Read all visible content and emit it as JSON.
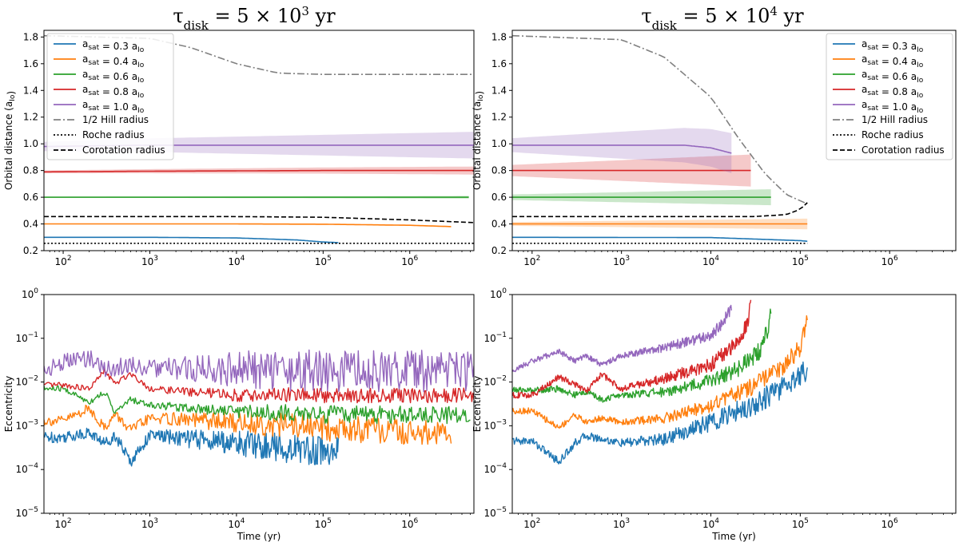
{
  "panels": {
    "left_title": "τ_disk = 5 × 10^3 yr",
    "right_title": "τ_disk = 5 × 10^4 yr"
  },
  "colors": {
    "0.3": "#1f77b4",
    "0.4": "#ff7f0e",
    "0.6": "#2ca02c",
    "0.8": "#d62728",
    "1.0": "#9467bd",
    "hill": "#808080",
    "roche": "#000000",
    "corotation": "#000000"
  },
  "legend": {
    "series": [
      {
        "label": "a_sat = 0.3 a_Io",
        "key": "0.3",
        "style": "solid"
      },
      {
        "label": "a_sat = 0.4 a_Io",
        "key": "0.4",
        "style": "solid"
      },
      {
        "label": "a_sat = 0.6 a_Io",
        "key": "0.6",
        "style": "solid"
      },
      {
        "label": "a_sat = 0.8 a_Io",
        "key": "0.8",
        "style": "solid"
      },
      {
        "label": "a_sat = 1.0 a_Io",
        "key": "1.0",
        "style": "solid"
      },
      {
        "label": "1/2 Hill radius",
        "key": "hill",
        "style": "dashdot"
      },
      {
        "label": "Roche radius",
        "key": "roche",
        "style": "dotted"
      },
      {
        "label": "Corotation radius",
        "key": "corotation",
        "style": "dashed"
      }
    ]
  },
  "chart_data": [
    {
      "type": "line",
      "panel": "top-left",
      "title": "τ_disk = 5 × 10^3 yr",
      "xlabel": "",
      "ylabel": "Orbital distance (a_Io)",
      "xscale": "log",
      "xlim": [
        60,
        5500000
      ],
      "ylim": [
        0.2,
        1.85
      ],
      "xticks": [
        "10^2",
        "10^3",
        "10^4",
        "10^5",
        "10^6"
      ],
      "yticks": [
        "0.2",
        "0.4",
        "0.6",
        "0.8",
        "1.0",
        "1.2",
        "1.4",
        "1.6",
        "1.8"
      ],
      "legend_position": "top-left",
      "series": [
        {
          "name": "a_sat = 0.3 a_Io",
          "key": "0.3",
          "x": [
            60,
            1000,
            10000,
            50000,
            100000,
            150000
          ],
          "y": [
            0.3,
            0.3,
            0.295,
            0.28,
            0.265,
            0.26
          ],
          "band": 0.003
        },
        {
          "name": "a_sat = 0.4 a_Io",
          "key": "0.4",
          "x": [
            60,
            10000,
            100000,
            1000000,
            3000000
          ],
          "y": [
            0.4,
            0.4,
            0.398,
            0.39,
            0.38
          ],
          "band": 0.004
        },
        {
          "name": "a_sat = 0.6 a_Io",
          "key": "0.6",
          "x": [
            60,
            1000,
            100000,
            4800000
          ],
          "y": [
            0.6,
            0.6,
            0.6,
            0.6
          ],
          "band": 0.01
        },
        {
          "name": "a_sat = 0.8 a_Io",
          "key": "0.8",
          "x": [
            60,
            1000,
            100000,
            5500000
          ],
          "y": [
            0.79,
            0.795,
            0.8,
            0.8
          ],
          "band": 0.03
        },
        {
          "name": "a_sat = 1.0 a_Io",
          "key": "1.0",
          "x": [
            60,
            1000,
            100000,
            5500000
          ],
          "y": [
            0.98,
            0.99,
            0.99,
            0.99
          ],
          "band": 0.1
        },
        {
          "name": "1/2 Hill radius",
          "key": "hill",
          "x": [
            60,
            1000,
            3000,
            10000,
            30000,
            100000,
            5500000
          ],
          "y": [
            1.81,
            1.79,
            1.72,
            1.6,
            1.53,
            1.52,
            1.52
          ]
        },
        {
          "name": "Roche radius",
          "key": "roche",
          "x": [
            60,
            5500000
          ],
          "y": [
            0.255,
            0.255
          ]
        },
        {
          "name": "Corotation radius",
          "key": "corotation",
          "x": [
            60,
            10000,
            100000,
            1000000,
            5500000
          ],
          "y": [
            0.455,
            0.455,
            0.45,
            0.43,
            0.41
          ]
        }
      ]
    },
    {
      "type": "line",
      "panel": "top-right",
      "title": "τ_disk = 5 × 10^4 yr",
      "xlabel": "",
      "ylabel": "Orbital distance (a_Io)",
      "xscale": "log",
      "xlim": [
        60,
        5500000
      ],
      "ylim": [
        0.2,
        1.85
      ],
      "xticks": [
        "10^2",
        "10^3",
        "10^4",
        "10^5",
        "10^6"
      ],
      "yticks": [
        "0.2",
        "0.4",
        "0.6",
        "0.8",
        "1.0",
        "1.2",
        "1.4",
        "1.6",
        "1.8"
      ],
      "legend_position": "top-right",
      "series": [
        {
          "name": "a_sat = 0.3 a_Io",
          "key": "0.3",
          "x": [
            60,
            10000,
            100000,
            120000
          ],
          "y": [
            0.3,
            0.298,
            0.275,
            0.27
          ],
          "band": 0.004
        },
        {
          "name": "a_sat = 0.4 a_Io",
          "key": "0.4",
          "x": [
            60,
            10000,
            100000,
            120000
          ],
          "y": [
            0.4,
            0.4,
            0.4,
            0.4
          ],
          "band": 0.04
        },
        {
          "name": "a_sat = 0.6 a_Io",
          "key": "0.6",
          "x": [
            60,
            10000,
            30000,
            47000
          ],
          "y": [
            0.6,
            0.6,
            0.6,
            0.6
          ],
          "band": 0.06
        },
        {
          "name": "a_sat = 0.8 a_Io",
          "key": "0.8",
          "x": [
            60,
            10000,
            20000,
            28000
          ],
          "y": [
            0.8,
            0.8,
            0.8,
            0.8
          ],
          "band": 0.12
        },
        {
          "name": "a_sat = 1.0 a_Io",
          "key": "1.0",
          "x": [
            60,
            5000,
            10000,
            17000
          ],
          "y": [
            0.99,
            0.99,
            0.97,
            0.93
          ],
          "band": 0.15
        },
        {
          "name": "1/2 Hill radius",
          "key": "hill",
          "x": [
            60,
            1000,
            3000,
            10000,
            20000,
            40000,
            70000,
            120000
          ],
          "y": [
            1.81,
            1.78,
            1.65,
            1.35,
            1.05,
            0.78,
            0.62,
            0.55
          ]
        },
        {
          "name": "Roche radius",
          "key": "roche",
          "x": [
            60,
            120000
          ],
          "y": [
            0.255,
            0.255
          ]
        },
        {
          "name": "Corotation radius",
          "key": "corotation",
          "x": [
            60,
            30000,
            70000,
            100000,
            120000
          ],
          "y": [
            0.455,
            0.455,
            0.47,
            0.51,
            0.56
          ]
        }
      ]
    },
    {
      "type": "line",
      "panel": "bottom-left",
      "title": "",
      "xlabel": "Time (yr)",
      "ylabel": "Eccentricity",
      "xscale": "log",
      "yscale": "log",
      "xlim": [
        60,
        5500000
      ],
      "ylim": [
        1e-05,
        1
      ],
      "xticks": [
        "10^2",
        "10^3",
        "10^4",
        "10^5",
        "10^6"
      ],
      "yticks": [
        "10^-5",
        "10^-4",
        "10^-3",
        "10^-2",
        "10^-1",
        "10^0"
      ],
      "series": [
        {
          "name": "a_sat = 0.3 a_Io",
          "key": "0.3",
          "x": [
            60,
            100,
            200,
            300,
            400,
            600,
            1000,
            3000,
            10000,
            50000,
            150000
          ],
          "y": [
            0.00055,
            0.00055,
            0.0007,
            0.0004,
            0.0006,
            0.00015,
            0.0006,
            0.0005,
            0.0004,
            0.0003,
            0.00025
          ],
          "spread": 2.2
        },
        {
          "name": "a_sat = 0.4 a_Io",
          "key": "0.4",
          "x": [
            60,
            100,
            200,
            300,
            400,
            600,
            1000,
            10000,
            100000,
            1000000,
            3000000
          ],
          "y": [
            0.0013,
            0.0013,
            0.0025,
            0.0009,
            0.0018,
            0.0008,
            0.0015,
            0.0012,
            0.0009,
            0.0007,
            0.0006
          ],
          "spread": 2.0
        },
        {
          "name": "a_sat = 0.6 a_Io",
          "key": "0.6",
          "x": [
            60,
            100,
            200,
            300,
            400,
            600,
            1000,
            10000,
            100000,
            5000000
          ],
          "y": [
            0.007,
            0.007,
            0.0035,
            0.006,
            0.002,
            0.004,
            0.003,
            0.0022,
            0.0018,
            0.0018
          ],
          "spread": 1.6
        },
        {
          "name": "a_sat = 0.8 a_Io",
          "key": "0.8",
          "x": [
            60,
            100,
            200,
            300,
            400,
            600,
            1000,
            10000,
            100000,
            5500000
          ],
          "y": [
            0.0085,
            0.0085,
            0.007,
            0.018,
            0.009,
            0.016,
            0.007,
            0.005,
            0.005,
            0.005
          ],
          "spread": 1.5
        },
        {
          "name": "a_sat = 1.0 a_Io",
          "key": "1.0",
          "x": [
            60,
            100,
            200,
            300,
            400,
            600,
            1000,
            10000,
            100000,
            5500000
          ],
          "y": [
            0.018,
            0.028,
            0.036,
            0.02,
            0.021,
            0.025,
            0.02,
            0.02,
            0.018,
            0.018
          ],
          "spread": 3.0
        }
      ]
    },
    {
      "type": "line",
      "panel": "bottom-right",
      "title": "",
      "xlabel": "Time (yr)",
      "ylabel": "Eccentricity",
      "xscale": "log",
      "yscale": "log",
      "xlim": [
        60,
        5500000
      ],
      "ylim": [
        1e-05,
        1
      ],
      "xticks": [
        "10^2",
        "10^3",
        "10^4",
        "10^5",
        "10^6"
      ],
      "yticks": [
        "10^-5",
        "10^-4",
        "10^-3",
        "10^-2",
        "10^-1",
        "10^0"
      ],
      "series": [
        {
          "name": "a_sat = 0.3 a_Io",
          "key": "0.3",
          "x": [
            60,
            100,
            200,
            300,
            400,
            600,
            1000,
            3000,
            10000,
            30000,
            60000,
            100000,
            120000
          ],
          "y": [
            0.00045,
            0.00045,
            0.00015,
            0.0004,
            0.0006,
            0.0005,
            0.0004,
            0.0005,
            0.0012,
            0.003,
            0.007,
            0.015,
            0.02
          ],
          "spread": 1.8
        },
        {
          "name": "a_sat = 0.4 a_Io",
          "key": "0.4",
          "x": [
            60,
            100,
            200,
            300,
            400,
            600,
            1000,
            3000,
            10000,
            30000,
            60000,
            100000,
            110000,
            120000
          ],
          "y": [
            0.0022,
            0.0022,
            0.0009,
            0.0018,
            0.0012,
            0.0015,
            0.0012,
            0.0015,
            0.003,
            0.008,
            0.02,
            0.06,
            0.15,
            0.3
          ],
          "spread": 1.6
        },
        {
          "name": "a_sat = 0.6 a_Io",
          "key": "0.6",
          "x": [
            60,
            100,
            200,
            300,
            400,
            600,
            1000,
            3000,
            10000,
            20000,
            35000,
            45000,
            47000
          ],
          "y": [
            0.0065,
            0.0065,
            0.007,
            0.005,
            0.006,
            0.004,
            0.005,
            0.006,
            0.011,
            0.02,
            0.05,
            0.2,
            0.5
          ],
          "spread": 1.6
        },
        {
          "name": "a_sat = 0.8 a_Io",
          "key": "0.8",
          "x": [
            60,
            100,
            200,
            300,
            400,
            600,
            1000,
            3000,
            10000,
            20000,
            26000,
            28000
          ],
          "y": [
            0.005,
            0.005,
            0.013,
            0.009,
            0.006,
            0.015,
            0.007,
            0.012,
            0.025,
            0.08,
            0.25,
            0.55
          ],
          "spread": 1.6
        },
        {
          "name": "a_sat = 1.0 a_Io",
          "key": "1.0",
          "x": [
            60,
            100,
            200,
            300,
            400,
            600,
            1000,
            3000,
            10000,
            15000,
            17000
          ],
          "y": [
            0.018,
            0.03,
            0.05,
            0.03,
            0.04,
            0.025,
            0.04,
            0.06,
            0.12,
            0.3,
            0.55
          ],
          "spread": 1.5
        }
      ]
    }
  ]
}
